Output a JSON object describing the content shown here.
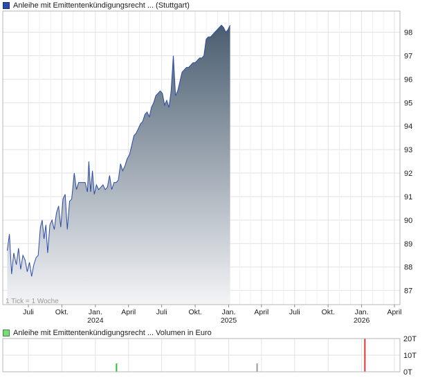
{
  "header": {
    "price_legend": "Anleihe mit Emittentenkündigungsrecht ... (Stuttgart)",
    "volume_legend": "Anleihe mit Emittentenkündigungsrecht ... Volumen in Euro"
  },
  "colors": {
    "price_line": "#2a4aa8",
    "area_top": "#4a5d70",
    "area_bottom": "#f3f4f6",
    "volume_up": "#33bb33",
    "volume_neutral": "#9a9a9a",
    "volume_down": "#dd3333",
    "grid": "#e2e2e2"
  },
  "chart_data": [
    {
      "type": "area",
      "title": "",
      "xlabel": "",
      "ylabel": "",
      "ylim": [
        86.4,
        98.9
      ],
      "y_ticks": [
        87,
        88,
        89,
        90,
        91,
        92,
        93,
        94,
        95,
        96,
        97,
        98
      ],
      "x_ticks": [
        {
          "date": "2023-07-01",
          "label": "Juli",
          "sub": ""
        },
        {
          "date": "2023-10-01",
          "label": "Okt.",
          "sub": ""
        },
        {
          "date": "2024-01-01",
          "label": "Jan.",
          "sub": "2024"
        },
        {
          "date": "2024-04-01",
          "label": "April",
          "sub": ""
        },
        {
          "date": "2024-07-01",
          "label": "Juli",
          "sub": ""
        },
        {
          "date": "2024-10-01",
          "label": "Okt.",
          "sub": ""
        },
        {
          "date": "2025-01-01",
          "label": "Jan.",
          "sub": "2025"
        },
        {
          "date": "2025-04-01",
          "label": "April",
          "sub": ""
        },
        {
          "date": "2025-07-01",
          "label": "Juli",
          "sub": ""
        },
        {
          "date": "2025-10-01",
          "label": "Okt.",
          "sub": ""
        },
        {
          "date": "2026-01-01",
          "label": "Jan.",
          "sub": "2026"
        },
        {
          "date": "2026-04-01",
          "label": "April",
          "sub": ""
        }
      ],
      "grid": true,
      "annotation": "1 Tick = 1 Woche",
      "series": [
        {
          "name": "",
          "points": [
            [
              "2023-05-04",
              88.7
            ],
            [
              "2023-05-10",
              89.4
            ],
            [
              "2023-05-16",
              87.7
            ],
            [
              "2023-05-22",
              88.6
            ],
            [
              "2023-05-29",
              88.1
            ],
            [
              "2023-06-04",
              88.8
            ],
            [
              "2023-06-10",
              87.9
            ],
            [
              "2023-06-16",
              88.5
            ],
            [
              "2023-06-22",
              88.3
            ],
            [
              "2023-06-28",
              87.8
            ],
            [
              "2023-07-04",
              88.2
            ],
            [
              "2023-07-10",
              87.6
            ],
            [
              "2023-07-16",
              88.1
            ],
            [
              "2023-07-22",
              88.4
            ],
            [
              "2023-07-28",
              88.5
            ],
            [
              "2023-08-03",
              89.7
            ],
            [
              "2023-08-08",
              90.0
            ],
            [
              "2023-08-13",
              89.2
            ],
            [
              "2023-08-18",
              89.8
            ],
            [
              "2023-08-23",
              88.6
            ],
            [
              "2023-08-29",
              89.8
            ],
            [
              "2023-09-04",
              90.0
            ],
            [
              "2023-09-10",
              89.6
            ],
            [
              "2023-09-16",
              90.3
            ],
            [
              "2023-09-22",
              90.6
            ],
            [
              "2023-09-28",
              89.7
            ],
            [
              "2023-10-04",
              90.9
            ],
            [
              "2023-10-10",
              91.1
            ],
            [
              "2023-10-16",
              89.6
            ],
            [
              "2023-10-22",
              90.8
            ],
            [
              "2023-10-28",
              90.9
            ],
            [
              "2023-11-04",
              92.0
            ],
            [
              "2023-11-10",
              91.3
            ],
            [
              "2023-11-16",
              91.6
            ],
            [
              "2023-11-22",
              91.6
            ],
            [
              "2023-11-28",
              91.6
            ],
            [
              "2023-12-04",
              91.6
            ],
            [
              "2023-12-10",
              91.2
            ],
            [
              "2023-12-14",
              92.5
            ],
            [
              "2023-12-19",
              91.2
            ],
            [
              "2023-12-24",
              92.1
            ],
            [
              "2023-12-29",
              91.1
            ],
            [
              "2024-01-04",
              91.5
            ],
            [
              "2024-01-10",
              91.3
            ],
            [
              "2024-01-16",
              91.4
            ],
            [
              "2024-01-22",
              91.5
            ],
            [
              "2024-01-28",
              91.3
            ],
            [
              "2024-02-03",
              91.4
            ],
            [
              "2024-02-09",
              91.9
            ],
            [
              "2024-02-15",
              91.3
            ],
            [
              "2024-02-21",
              91.6
            ],
            [
              "2024-02-27",
              91.6
            ],
            [
              "2024-03-04",
              91.7
            ],
            [
              "2024-03-10",
              92.4
            ],
            [
              "2024-03-16",
              92.1
            ],
            [
              "2024-03-22",
              92.3
            ],
            [
              "2024-03-28",
              92.6
            ],
            [
              "2024-04-04",
              92.8
            ],
            [
              "2024-04-10",
              93.2
            ],
            [
              "2024-04-16",
              93.6
            ],
            [
              "2024-04-22",
              93.7
            ],
            [
              "2024-04-28",
              93.9
            ],
            [
              "2024-05-04",
              94.1
            ],
            [
              "2024-05-10",
              94.2
            ],
            [
              "2024-05-16",
              94.5
            ],
            [
              "2024-05-22",
              94.6
            ],
            [
              "2024-05-28",
              94.4
            ],
            [
              "2024-06-03",
              94.8
            ],
            [
              "2024-06-09",
              95.0
            ],
            [
              "2024-06-15",
              95.3
            ],
            [
              "2024-06-21",
              95.4
            ],
            [
              "2024-06-27",
              95.5
            ],
            [
              "2024-07-03",
              95.4
            ],
            [
              "2024-07-09",
              94.9
            ],
            [
              "2024-07-15",
              95.1
            ],
            [
              "2024-07-21",
              94.8
            ],
            [
              "2024-07-27",
              95.5
            ],
            [
              "2024-08-02",
              97.0
            ],
            [
              "2024-08-08",
              95.3
            ],
            [
              "2024-08-14",
              95.5
            ],
            [
              "2024-08-20",
              95.9
            ],
            [
              "2024-08-26",
              96.3
            ],
            [
              "2024-09-01",
              96.4
            ],
            [
              "2024-09-07",
              96.5
            ],
            [
              "2024-09-13",
              96.5
            ],
            [
              "2024-09-19",
              96.6
            ],
            [
              "2024-09-25",
              96.7
            ],
            [
              "2024-10-01",
              96.7
            ],
            [
              "2024-10-07",
              96.8
            ],
            [
              "2024-10-13",
              96.9
            ],
            [
              "2024-10-19",
              96.9
            ],
            [
              "2024-10-25",
              97.0
            ],
            [
              "2024-10-31",
              97.7
            ],
            [
              "2024-11-06",
              97.8
            ],
            [
              "2024-11-12",
              97.8
            ],
            [
              "2024-11-18",
              97.9
            ],
            [
              "2024-11-24",
              98.0
            ],
            [
              "2024-11-30",
              98.1
            ],
            [
              "2024-12-06",
              98.2
            ],
            [
              "2024-12-12",
              98.3
            ],
            [
              "2024-12-18",
              98.2
            ],
            [
              "2024-12-24",
              98.0
            ],
            [
              "2024-12-30",
              98.1
            ],
            [
              "2025-01-05",
              98.3
            ]
          ]
        }
      ]
    },
    {
      "type": "bar",
      "title": "",
      "xlabel": "",
      "ylabel": "",
      "ylim": [
        0,
        20
      ],
      "y_ticks": [
        {
          "value": 0,
          "label": "0T"
        },
        {
          "value": 10,
          "label": "10T"
        },
        {
          "value": 20,
          "label": "20T"
        }
      ],
      "grid": true,
      "bars": [
        {
          "date": "2024-02-28",
          "value": 5,
          "kind": "up"
        },
        {
          "date": "2025-03-20",
          "value": 5,
          "kind": "neutral"
        },
        {
          "date": "2026-01-10",
          "value": 20,
          "kind": "down"
        }
      ]
    }
  ]
}
